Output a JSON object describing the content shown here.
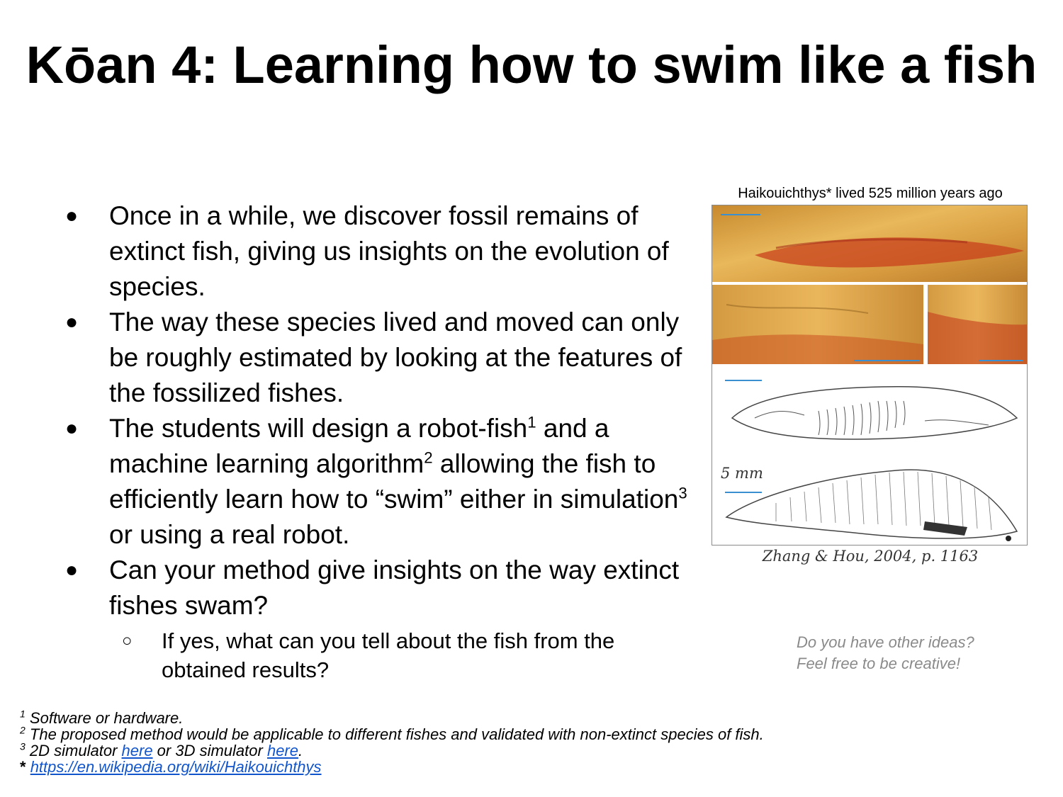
{
  "title": "Kōan 4: Learning how to swim like a fish",
  "bullets": [
    {
      "text_before": "Once in a while, we discover fossil remains of extinct fish, giving us insights on the evolution of species."
    },
    {
      "text_before": "The way these species lived and moved can only be roughly estimated by looking at the features of the fossilized fishes."
    },
    {
      "part1": "The students will design a robot-fish",
      "sup1": "1",
      "part2": " and a machine learning algorithm",
      "sup2": "2",
      "part3": " allowing the fish to efficiently learn how to “swim” either in simulation",
      "sup3": "3",
      "part4": " or using a real robot."
    },
    {
      "text_before": "Can your method give insights on the way extinct fishes swam?",
      "sub": "If yes, what can you tell about the fish from the obtained results?"
    }
  ],
  "figure": {
    "caption_top": "Haikouichthys* lived 525 million years ago",
    "scale_label": "5 mm",
    "reference": "Zhang & Hou, 2004, p. 1163"
  },
  "ideas": {
    "line1": "Do you have other ideas?",
    "line2": "Feel free to be creative!"
  },
  "footnotes": [
    {
      "mark": "1",
      "text": "Software or hardware."
    },
    {
      "mark": "2",
      "text": "The proposed method would be applicable to different fishes and validated with non-extinct species of fish."
    },
    {
      "mark": "3",
      "pre": "2D simulator ",
      "link1": "here",
      "mid": " or 3D simulator ",
      "link2": "here",
      "post": "."
    },
    {
      "mark": "*",
      "link": "https://en.wikipedia.org/wiki/Haikouichthys"
    }
  ]
}
